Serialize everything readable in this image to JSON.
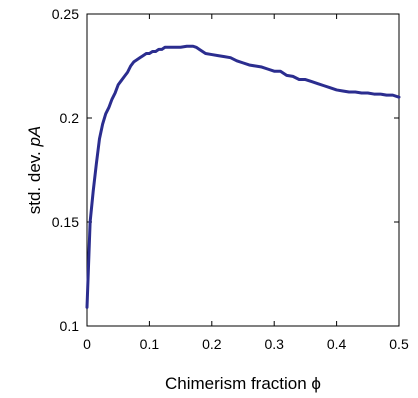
{
  "chart_data": {
    "type": "line",
    "title": "",
    "xlabel": "Chimerism fraction ϕ",
    "ylabel_prefix": "std. dev. ",
    "ylabel_italic": "pA",
    "xlim": [
      0,
      0.5
    ],
    "ylim": [
      0.1,
      0.25
    ],
    "xticks": [
      0,
      0.1,
      0.2,
      0.3,
      0.4,
      0.5
    ],
    "xtick_labels": [
      "0",
      "0.1",
      "0.2",
      "0.3",
      "0.4",
      "0.5"
    ],
    "yticks": [
      0.1,
      0.15,
      0.2,
      0.25
    ],
    "ytick_labels": [
      "0.1",
      "0.15",
      "0.2",
      "0.25"
    ],
    "grid": false,
    "line_color": "#2b2d8f",
    "series": [
      {
        "x": [
          0,
          0.005,
          0.01,
          0.015,
          0.02,
          0.025,
          0.03,
          0.035,
          0.04,
          0.045,
          0.05,
          0.055,
          0.06,
          0.065,
          0.07,
          0.075,
          0.08,
          0.085,
          0.09,
          0.095,
          0.1,
          0.105,
          0.11,
          0.115,
          0.12,
          0.125,
          0.13,
          0.14,
          0.15,
          0.16,
          0.17,
          0.175,
          0.18,
          0.19,
          0.2,
          0.21,
          0.22,
          0.23,
          0.24,
          0.25,
          0.26,
          0.27,
          0.28,
          0.29,
          0.3,
          0.31,
          0.32,
          0.33,
          0.34,
          0.35,
          0.36,
          0.37,
          0.38,
          0.39,
          0.4,
          0.41,
          0.42,
          0.43,
          0.44,
          0.45,
          0.46,
          0.47,
          0.48,
          0.49,
          0.5
        ],
        "y": [
          0.109,
          0.15,
          0.165,
          0.178,
          0.19,
          0.197,
          0.202,
          0.205,
          0.209,
          0.212,
          0.216,
          0.218,
          0.22,
          0.222,
          0.225,
          0.227,
          0.228,
          0.229,
          0.23,
          0.231,
          0.231,
          0.232,
          0.232,
          0.233,
          0.233,
          0.234,
          0.234,
          0.234,
          0.234,
          0.2345,
          0.2345,
          0.234,
          0.233,
          0.231,
          0.2305,
          0.23,
          0.2295,
          0.229,
          0.2275,
          0.2265,
          0.2255,
          0.225,
          0.2245,
          0.2235,
          0.2225,
          0.2225,
          0.2205,
          0.22,
          0.2185,
          0.2185,
          0.2175,
          0.2165,
          0.2155,
          0.2145,
          0.2135,
          0.213,
          0.2125,
          0.2125,
          0.212,
          0.212,
          0.2115,
          0.2115,
          0.211,
          0.211,
          0.21
        ]
      }
    ]
  }
}
